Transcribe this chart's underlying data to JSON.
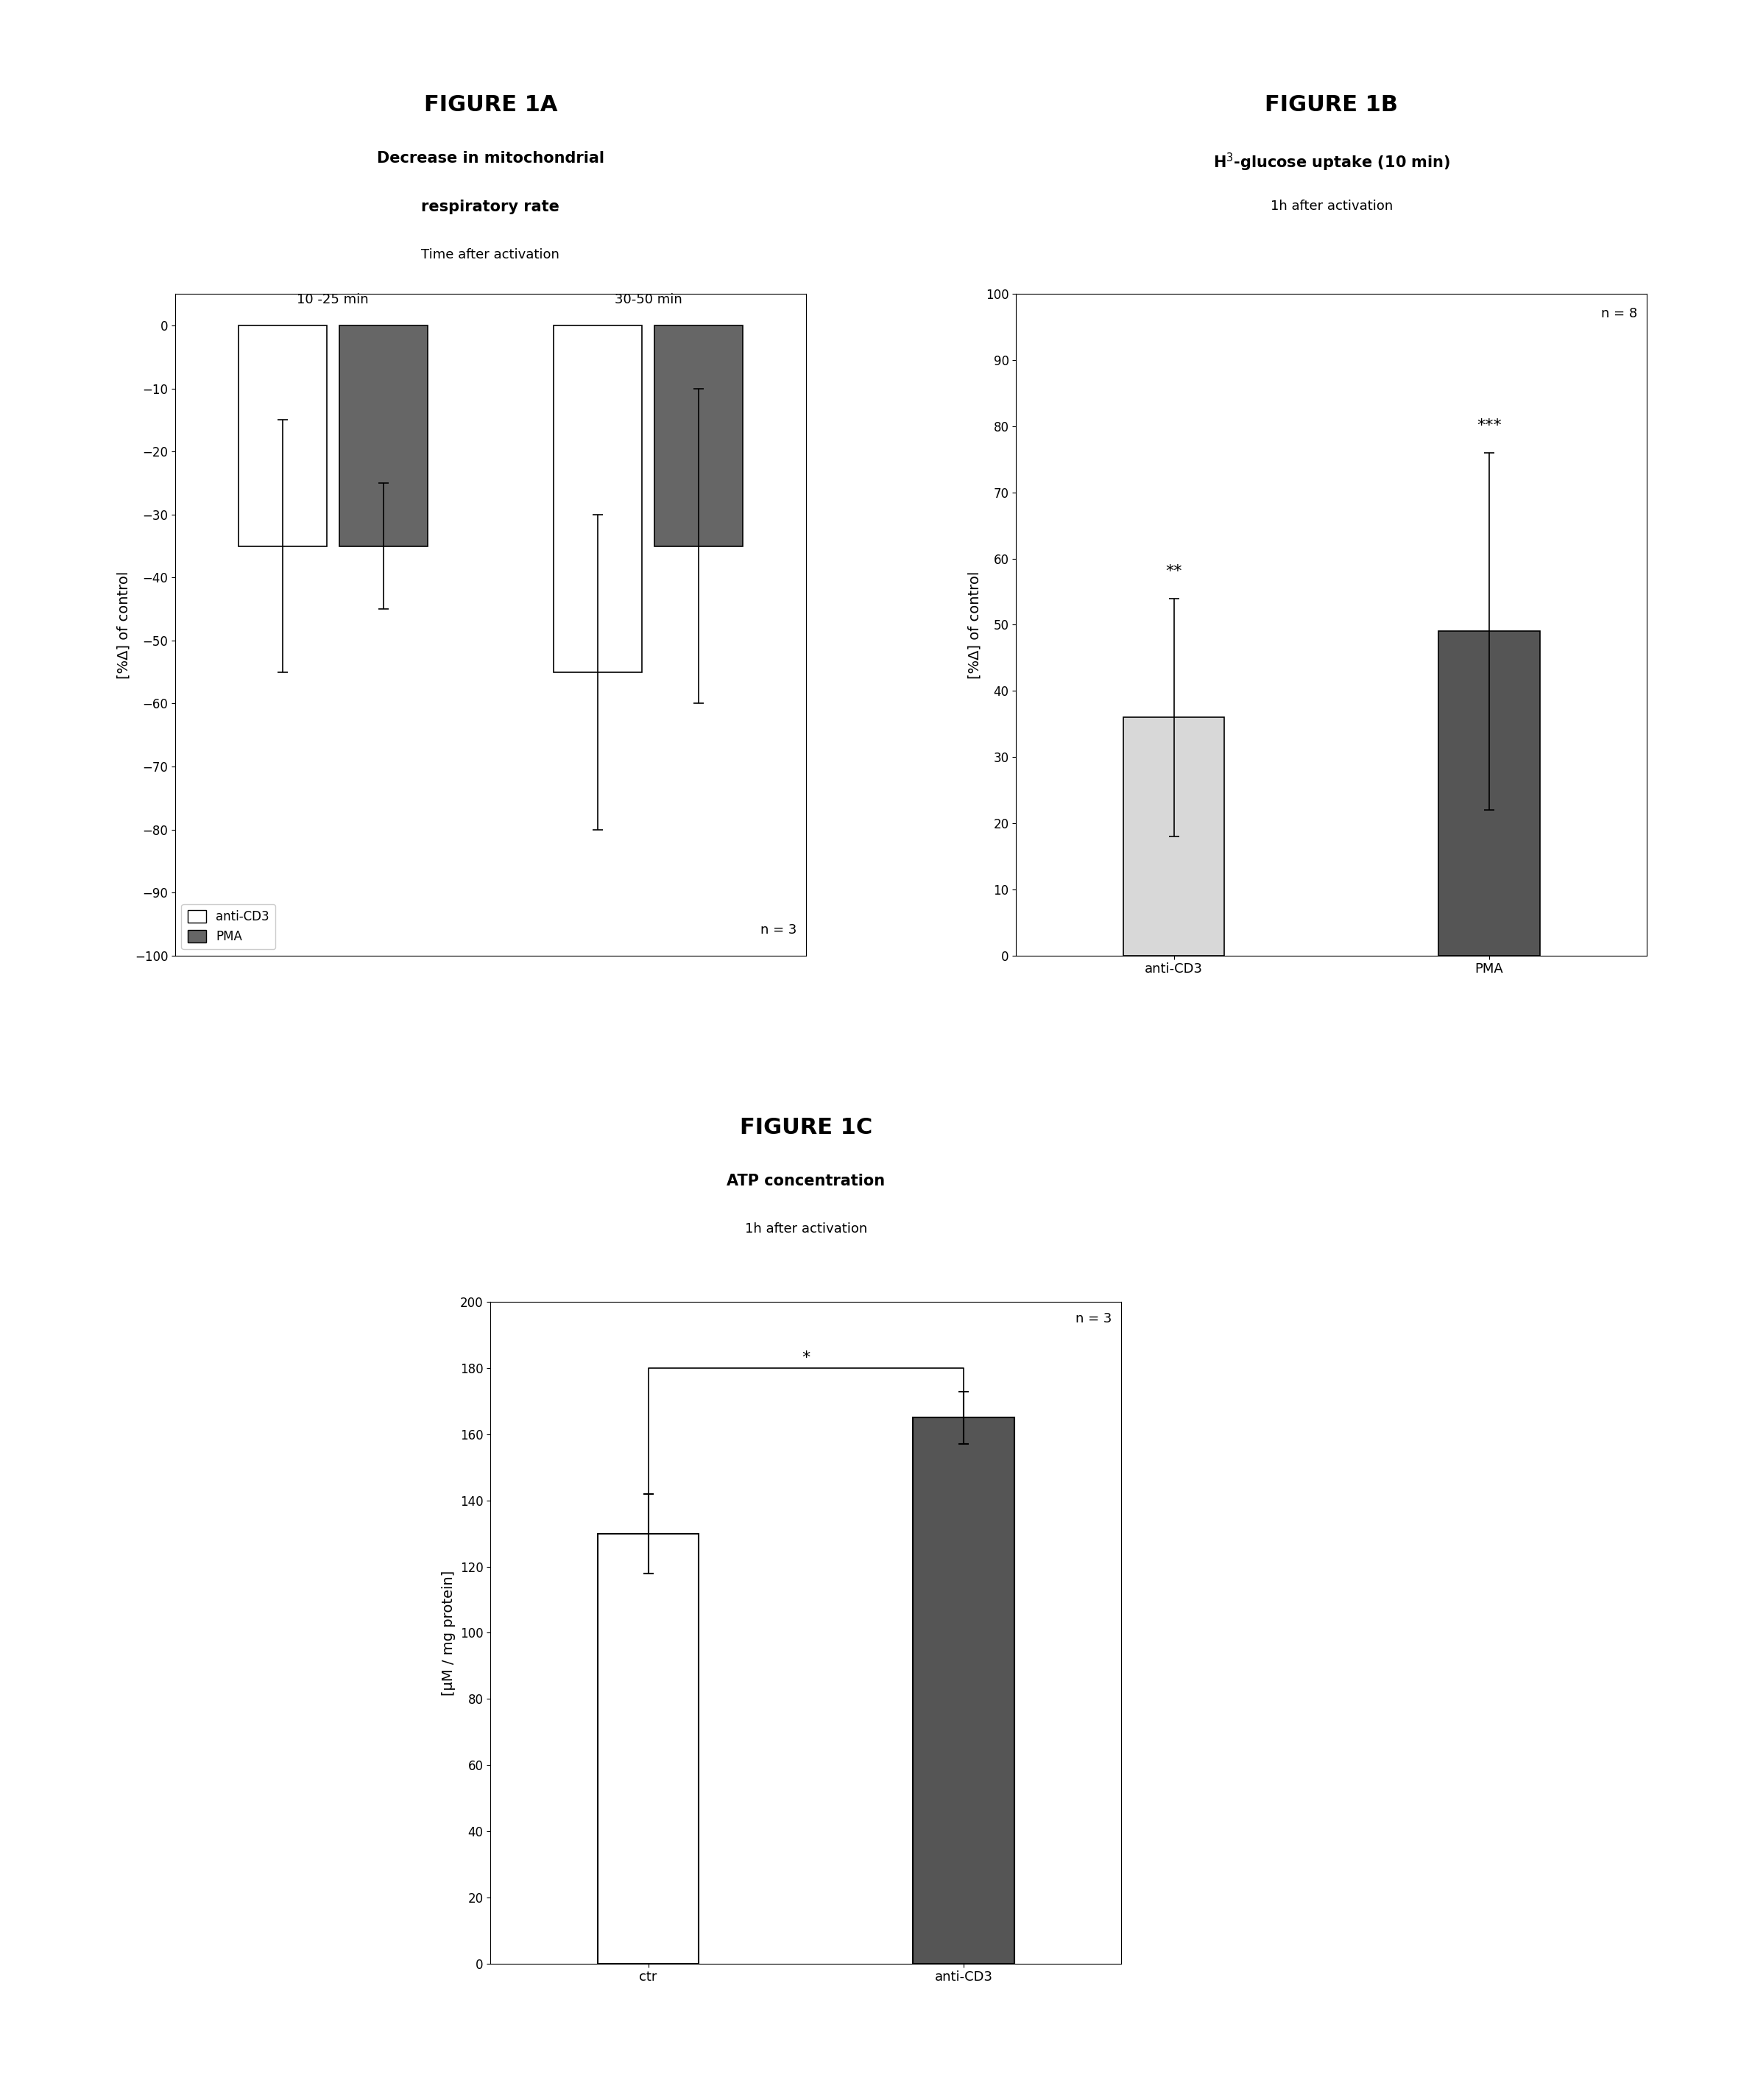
{
  "fig1a": {
    "title": "FIGURE 1A",
    "subtitle1": "Decrease in mitochondrial",
    "subtitle2": "respiratory rate",
    "subtitle3": "Time after activation",
    "group_labels": [
      "10 -25 min",
      "30-50 min"
    ],
    "bar_values": [
      [
        -35,
        -35
      ],
      [
        -55,
        -35
      ]
    ],
    "bar_errors": [
      [
        20,
        10
      ],
      [
        25,
        25
      ]
    ],
    "legend_labels": [
      "anti-CD3",
      "PMA"
    ],
    "ylabel": "[%Δ] of control",
    "ylim": [
      -100,
      5
    ],
    "yticks": [
      0,
      -10,
      -20,
      -30,
      -40,
      -50,
      -60,
      -70,
      -80,
      -90,
      -100
    ],
    "n_label": "n = 3"
  },
  "fig1b": {
    "title": "FIGURE 1B",
    "subtitle1": "H$^3$-glucose uptake (10 min)",
    "subtitle2": "1h after activation",
    "bar_labels": [
      "anti-CD3",
      "PMA"
    ],
    "bar_values": [
      36,
      49
    ],
    "bar_errors": [
      18,
      27
    ],
    "ylabel": "[%Δ] of control",
    "ylim": [
      0,
      100
    ],
    "yticks": [
      0,
      10,
      20,
      30,
      40,
      50,
      60,
      70,
      80,
      90,
      100
    ],
    "sig_labels": [
      "**",
      "***"
    ],
    "n_label": "n = 8"
  },
  "fig1c": {
    "title": "FIGURE 1C",
    "subtitle1": "ATP concentration",
    "subtitle2": "1h after activation",
    "bar_labels": [
      "ctr",
      "anti-CD3"
    ],
    "bar_values": [
      130,
      165
    ],
    "bar_errors": [
      12,
      8
    ],
    "ylabel": "[μM / mg protein]",
    "ylim": [
      0,
      200
    ],
    "yticks": [
      0,
      20,
      40,
      60,
      80,
      100,
      120,
      140,
      160,
      180,
      200
    ],
    "sig_label": "*",
    "n_label": "n = 3"
  },
  "background_color": "#ffffff"
}
